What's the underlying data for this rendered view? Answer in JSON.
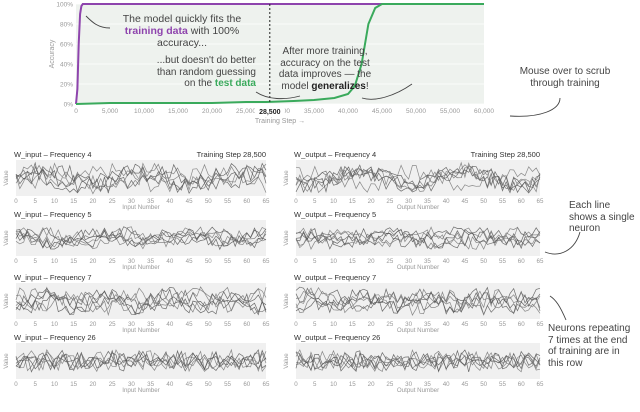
{
  "chart_data": [
    {
      "type": "line",
      "xlabel": "Training Step →",
      "ylabel": "Accuracy",
      "xlim": [
        0,
        60000
      ],
      "ylim": [
        0,
        100
      ],
      "x_ticks": [
        "0",
        "5,000",
        "10,000",
        "15,000",
        "20,000",
        "25,000",
        "30,000",
        "35,000",
        "40,000",
        "45,000",
        "50,000",
        "55,000",
        "60,000"
      ],
      "y_ticks": [
        "0%",
        "20%",
        "40%",
        "60%",
        "80%",
        "100%"
      ],
      "current_step": 28500,
      "current_step_label": "28,500",
      "series": [
        {
          "name": "training data",
          "color": "#8e44ad",
          "x": [
            0,
            200,
            400,
            600,
            800,
            1000,
            60000
          ],
          "y": [
            0,
            15,
            60,
            90,
            98,
            100,
            100
          ]
        },
        {
          "name": "test data",
          "color": "#3aaa5c",
          "x": [
            0,
            5000,
            10000,
            15000,
            20000,
            25000,
            28000,
            32000,
            35000,
            38000,
            40000,
            41000,
            42000,
            43000,
            44000,
            45000,
            60000
          ],
          "y": [
            0,
            1,
            1,
            1,
            1,
            2,
            2,
            3,
            4,
            6,
            10,
            18,
            40,
            80,
            96,
            100,
            100
          ]
        }
      ]
    },
    {
      "type": "line",
      "title": "W_input – Frequency 4",
      "step_label": "Training Step 28,500",
      "xlabel": "Input Number",
      "ylabel": "Value",
      "xlim": [
        0,
        65
      ],
      "x_ticks": [
        "0",
        "5",
        "10",
        "15",
        "20",
        "25",
        "30",
        "35",
        "40",
        "45",
        "50",
        "55",
        "60",
        "65"
      ],
      "freq": 4
    },
    {
      "type": "line",
      "title": "W_output – Frequency 4",
      "step_label": "Training Step 28,500",
      "xlabel": "Output Number",
      "ylabel": "Value",
      "xlim": [
        0,
        65
      ],
      "x_ticks": [
        "0",
        "5",
        "10",
        "15",
        "20",
        "25",
        "30",
        "35",
        "40",
        "45",
        "50",
        "55",
        "60",
        "65"
      ],
      "freq": 4
    },
    {
      "type": "line",
      "title": "W_input – Frequency 5",
      "xlabel": "Input Number",
      "ylabel": "Value",
      "xlim": [
        0,
        65
      ],
      "x_ticks": [
        "0",
        "5",
        "10",
        "15",
        "20",
        "25",
        "30",
        "35",
        "40",
        "45",
        "50",
        "55",
        "60",
        "65"
      ],
      "freq": 5
    },
    {
      "type": "line",
      "title": "W_output – Frequency 5",
      "xlabel": "Output Number",
      "ylabel": "Value",
      "xlim": [
        0,
        65
      ],
      "x_ticks": [
        "0",
        "5",
        "10",
        "15",
        "20",
        "25",
        "30",
        "35",
        "40",
        "45",
        "50",
        "55",
        "60",
        "65"
      ],
      "freq": 5
    },
    {
      "type": "line",
      "title": "W_input – Frequency 7",
      "xlabel": "Input Number",
      "ylabel": "Value",
      "xlim": [
        0,
        65
      ],
      "x_ticks": [
        "0",
        "5",
        "10",
        "15",
        "20",
        "25",
        "30",
        "35",
        "40",
        "45",
        "50",
        "55",
        "60",
        "65"
      ],
      "freq": 7
    },
    {
      "type": "line",
      "title": "W_output – Frequency 7",
      "xlabel": "Output Number",
      "ylabel": "Value",
      "xlim": [
        0,
        65
      ],
      "x_ticks": [
        "0",
        "5",
        "10",
        "15",
        "20",
        "25",
        "30",
        "35",
        "40",
        "45",
        "50",
        "55",
        "60",
        "65"
      ],
      "freq": 7
    },
    {
      "type": "line",
      "title": "W_input – Frequency 26",
      "xlabel": "Input Number",
      "ylabel": "Value",
      "xlim": [
        0,
        65
      ],
      "x_ticks": [
        "0",
        "5",
        "10",
        "15",
        "20",
        "25",
        "30",
        "35",
        "40",
        "45",
        "50",
        "55",
        "60",
        "65"
      ],
      "freq": 26
    },
    {
      "type": "line",
      "title": "W_output – Frequency 26",
      "xlabel": "Output Number",
      "ylabel": "Value",
      "xlim": [
        0,
        65
      ],
      "x_ticks": [
        "0",
        "5",
        "10",
        "15",
        "20",
        "25",
        "30",
        "35",
        "40",
        "45",
        "50",
        "55",
        "60",
        "65"
      ],
      "freq": 26
    }
  ],
  "annotations": {
    "train_pre": "The model quickly fits the ",
    "train_bold": "training data",
    "train_post": " with 100% accuracy...",
    "test_pre": "...but doesn't do better than random guessing on the ",
    "test_bold": "test data",
    "gen_pre": "After more training, accuracy on the test data improves — the model ",
    "gen_bold": "generalizes",
    "gen_post": "!",
    "mouse": "Mouse over to scrub through training",
    "each_line": "Each line shows a single neuron",
    "repeating": "Neurons repeating 7 times at the end of training are in this row"
  }
}
